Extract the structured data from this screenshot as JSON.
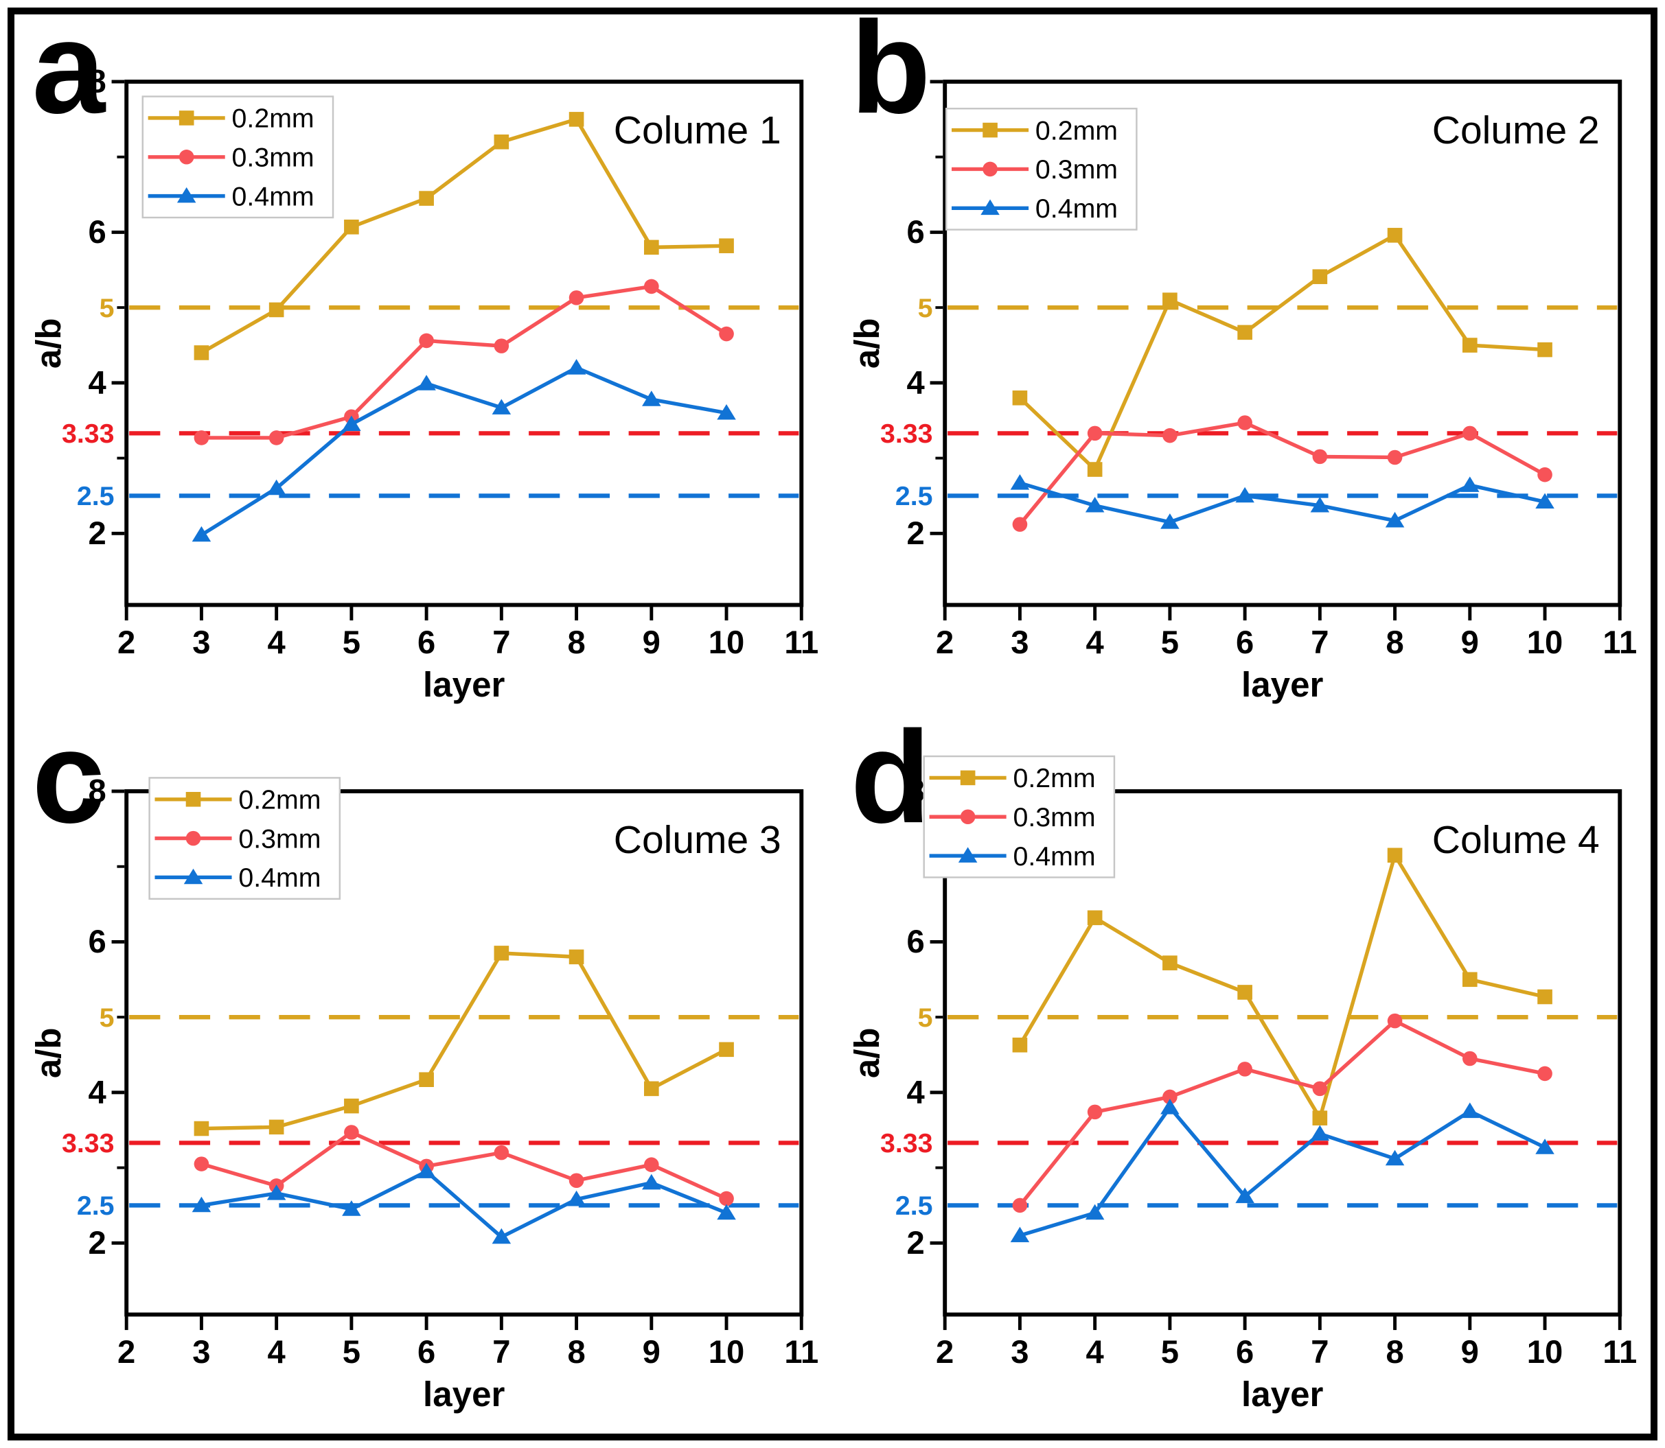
{
  "figure": {
    "background": "#ffffff",
    "border_color": "#000000",
    "text_color": "#000000"
  },
  "chart_data": [
    {
      "type": "line",
      "panel_letter": "a",
      "title": "Colume 1",
      "xlabel": "layer",
      "ylabel": "a/b",
      "x": [
        3,
        4,
        5,
        6,
        7,
        8,
        9,
        10
      ],
      "xlim": [
        2,
        11
      ],
      "x_ticks": [
        2,
        3,
        4,
        5,
        6,
        7,
        8,
        9,
        10,
        11
      ],
      "ylim": [
        1.05,
        8
      ],
      "y_major_ticks": [
        8,
        6,
        4,
        2
      ],
      "y_minor_ticks": [
        7,
        5,
        3
      ],
      "grid": false,
      "legend_position": "top-left",
      "reference_lines": [
        {
          "value": 5,
          "label": "5",
          "color": "#D9A420"
        },
        {
          "value": 3.33,
          "label": "3.33",
          "color": "#ED1C24"
        },
        {
          "value": 2.5,
          "label": "2.5",
          "color": "#1173D5"
        }
      ],
      "series": [
        {
          "name": "0.2mm",
          "marker": "square",
          "color": "#D9A420",
          "values": [
            4.4,
            4.97,
            6.07,
            6.45,
            7.2,
            7.5,
            5.8,
            5.82
          ]
        },
        {
          "name": "0.3mm",
          "marker": "circle",
          "color": "#F75358",
          "values": [
            3.27,
            3.27,
            3.55,
            4.56,
            4.49,
            5.13,
            5.28,
            4.65
          ]
        },
        {
          "name": "0.4mm",
          "marker": "triangle",
          "color": "#1173D5",
          "values": [
            1.98,
            2.6,
            3.45,
            3.99,
            3.67,
            4.2,
            3.78,
            3.6
          ]
        }
      ]
    },
    {
      "type": "line",
      "panel_letter": "b",
      "title": "Colume 2",
      "xlabel": "layer",
      "ylabel": "a/b",
      "x": [
        3,
        4,
        5,
        6,
        7,
        8,
        9,
        10
      ],
      "xlim": [
        2,
        11
      ],
      "x_ticks": [
        2,
        3,
        4,
        5,
        6,
        7,
        8,
        9,
        10,
        11
      ],
      "ylim": [
        1.05,
        8
      ],
      "y_major_ticks": [
        8,
        6,
        4,
        2
      ],
      "y_minor_ticks": [
        7,
        5,
        3
      ],
      "grid": false,
      "legend_position": "top-left",
      "reference_lines": [
        {
          "value": 5,
          "label": "5",
          "color": "#D9A420"
        },
        {
          "value": 3.33,
          "label": "3.33",
          "color": "#ED1C24"
        },
        {
          "value": 2.5,
          "label": "2.5",
          "color": "#1173D5"
        }
      ],
      "series": [
        {
          "name": "0.2mm",
          "marker": "square",
          "color": "#D9A420",
          "values": [
            3.8,
            2.85,
            5.1,
            4.67,
            5.41,
            5.96,
            4.5,
            4.44
          ]
        },
        {
          "name": "0.3mm",
          "marker": "circle",
          "color": "#F75358",
          "values": [
            2.12,
            3.33,
            3.3,
            3.47,
            3.02,
            3.01,
            3.33,
            2.78
          ]
        },
        {
          "name": "0.4mm",
          "marker": "triangle",
          "color": "#1173D5",
          "values": [
            2.67,
            2.37,
            2.15,
            2.5,
            2.37,
            2.17,
            2.64,
            2.42
          ]
        }
      ]
    },
    {
      "type": "line",
      "panel_letter": "c",
      "title": "Colume 3",
      "xlabel": "layer",
      "ylabel": "a/b",
      "x": [
        3,
        4,
        5,
        6,
        7,
        8,
        9,
        10
      ],
      "xlim": [
        2,
        11
      ],
      "x_ticks": [
        2,
        3,
        4,
        5,
        6,
        7,
        8,
        9,
        10,
        11
      ],
      "ylim": [
        1.05,
        8
      ],
      "y_major_ticks": [
        8,
        6,
        4,
        2
      ],
      "y_minor_ticks": [
        7,
        5,
        3
      ],
      "grid": false,
      "legend_position": "top-left",
      "reference_lines": [
        {
          "value": 5,
          "label": "5",
          "color": "#D9A420"
        },
        {
          "value": 3.33,
          "label": "3.33",
          "color": "#ED1C24"
        },
        {
          "value": 2.5,
          "label": "2.5",
          "color": "#1173D5"
        }
      ],
      "series": [
        {
          "name": "0.2mm",
          "marker": "square",
          "color": "#D9A420",
          "values": [
            3.52,
            3.54,
            3.82,
            4.17,
            5.85,
            5.8,
            4.05,
            4.57
          ]
        },
        {
          "name": "0.3mm",
          "marker": "circle",
          "color": "#F75358",
          "values": [
            3.05,
            2.76,
            3.47,
            3.02,
            3.2,
            2.83,
            3.04,
            2.59
          ]
        },
        {
          "name": "0.4mm",
          "marker": "triangle",
          "color": "#1173D5",
          "values": [
            2.5,
            2.66,
            2.45,
            2.95,
            2.08,
            2.58,
            2.8,
            2.4
          ]
        }
      ]
    },
    {
      "type": "line",
      "panel_letter": "d",
      "title": "Colume 4",
      "xlabel": "layer",
      "ylabel": "a/b",
      "x": [
        3,
        4,
        5,
        6,
        7,
        8,
        9,
        10
      ],
      "xlim": [
        2,
        11
      ],
      "x_ticks": [
        2,
        3,
        4,
        5,
        6,
        7,
        8,
        9,
        10,
        11
      ],
      "ylim": [
        1.05,
        8
      ],
      "y_major_ticks": [
        8,
        6,
        4,
        2
      ],
      "y_minor_ticks": [
        7,
        5,
        3
      ],
      "grid": false,
      "legend_position": "top-left",
      "reference_lines": [
        {
          "value": 5,
          "label": "5",
          "color": "#D9A420"
        },
        {
          "value": 3.33,
          "label": "3.33",
          "color": "#ED1C24"
        },
        {
          "value": 2.5,
          "label": "2.5",
          "color": "#1173D5"
        }
      ],
      "series": [
        {
          "name": "0.2mm",
          "marker": "square",
          "color": "#D9A420",
          "values": [
            4.63,
            6.32,
            5.72,
            5.33,
            3.66,
            7.15,
            5.5,
            5.27
          ]
        },
        {
          "name": "0.3mm",
          "marker": "circle",
          "color": "#F75358",
          "values": [
            2.5,
            3.74,
            3.94,
            4.31,
            4.05,
            4.95,
            4.45,
            4.25
          ]
        },
        {
          "name": "0.4mm",
          "marker": "triangle",
          "color": "#1173D5",
          "values": [
            2.1,
            2.4,
            3.8,
            2.62,
            3.45,
            3.12,
            3.75,
            3.27
          ]
        }
      ]
    }
  ]
}
